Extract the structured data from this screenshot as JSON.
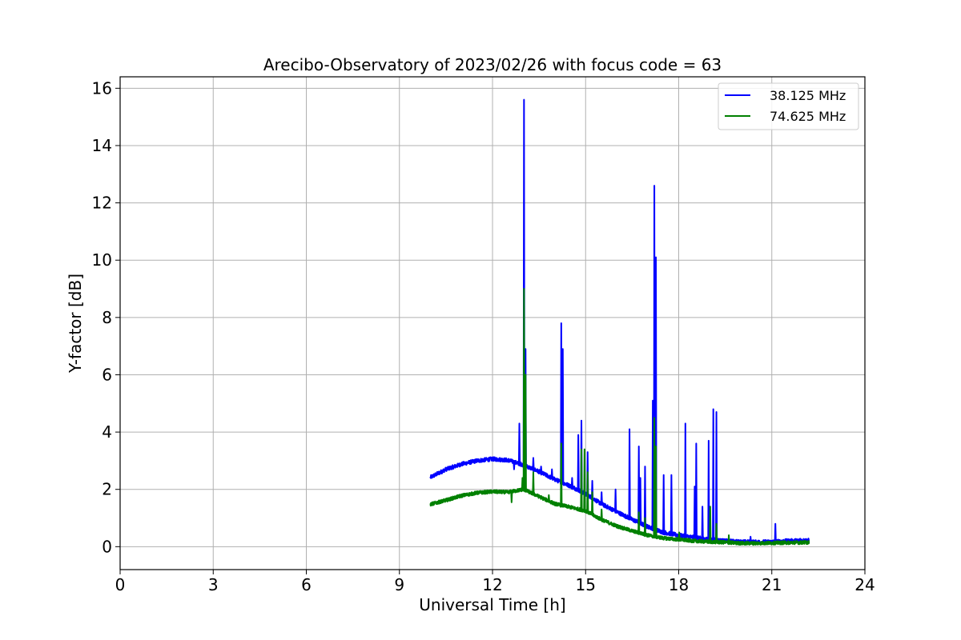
{
  "chart_data": {
    "type": "line",
    "title": "Arecibo-Observatory of 2023/02/26 with focus code = 63",
    "xlabel": "Universal Time [h]",
    "ylabel": "Y-factor [dB]",
    "xlim": [
      0,
      24
    ],
    "ylim": [
      -0.8,
      16.4
    ],
    "xticks": [
      0,
      3,
      6,
      9,
      12,
      15,
      18,
      21,
      24
    ],
    "xtick_labels": [
      "0",
      "3",
      "6",
      "9",
      "12",
      "15",
      "18",
      "21",
      "24"
    ],
    "yticks": [
      0,
      2,
      4,
      6,
      8,
      10,
      12,
      14,
      16
    ],
    "ytick_labels": [
      "0",
      "2",
      "4",
      "6",
      "8",
      "10",
      "12",
      "14",
      "16"
    ],
    "grid": true,
    "legend_position": "upper-right",
    "series": [
      {
        "name": "38.125 MHz",
        "color": "#0000ff",
        "baseline": [
          [
            10.0,
            2.42
          ],
          [
            10.5,
            2.7
          ],
          [
            11.0,
            2.88
          ],
          [
            11.5,
            3.0
          ],
          [
            12.0,
            3.06
          ],
          [
            12.5,
            3.02
          ],
          [
            13.0,
            2.85
          ],
          [
            13.5,
            2.62
          ],
          [
            14.0,
            2.35
          ],
          [
            14.5,
            2.12
          ],
          [
            15.0,
            1.85
          ],
          [
            15.5,
            1.5
          ],
          [
            16.0,
            1.22
          ],
          [
            16.5,
            0.95
          ],
          [
            17.0,
            0.7
          ],
          [
            17.5,
            0.5
          ],
          [
            18.0,
            0.4
          ],
          [
            18.5,
            0.32
          ],
          [
            19.0,
            0.25
          ],
          [
            19.5,
            0.2
          ],
          [
            20.0,
            0.17
          ],
          [
            20.5,
            0.16
          ],
          [
            21.0,
            0.17
          ],
          [
            21.5,
            0.2
          ],
          [
            22.2,
            0.22
          ]
        ],
        "noise": 0.07,
        "spikes": [
          [
            12.68,
            2.7
          ],
          [
            12.85,
            4.3
          ],
          [
            13.0,
            15.6
          ],
          [
            13.05,
            6.9
          ],
          [
            13.3,
            3.1
          ],
          [
            13.55,
            2.8
          ],
          [
            13.9,
            2.7
          ],
          [
            14.2,
            7.8
          ],
          [
            14.25,
            6.9
          ],
          [
            14.55,
            2.4
          ],
          [
            14.75,
            3.9
          ],
          [
            14.85,
            4.4
          ],
          [
            15.05,
            3.3
          ],
          [
            15.2,
            2.3
          ],
          [
            15.5,
            1.9
          ],
          [
            15.95,
            2.0
          ],
          [
            16.4,
            4.1
          ],
          [
            16.7,
            3.5
          ],
          [
            16.75,
            2.4
          ],
          [
            16.9,
            2.8
          ],
          [
            17.15,
            5.1
          ],
          [
            17.2,
            12.6
          ],
          [
            17.25,
            10.1
          ],
          [
            17.5,
            2.5
          ],
          [
            17.75,
            2.5
          ],
          [
            18.2,
            4.3
          ],
          [
            18.55,
            3.6
          ],
          [
            18.5,
            2.1
          ],
          [
            18.75,
            1.4
          ],
          [
            18.95,
            3.7
          ],
          [
            19.1,
            4.8
          ],
          [
            19.2,
            4.7
          ],
          [
            20.3,
            0.35
          ],
          [
            21.1,
            0.8
          ],
          [
            21.9,
            0.28
          ]
        ]
      },
      {
        "name": "74.625 MHz",
        "color": "#008000",
        "baseline": [
          [
            10.0,
            1.48
          ],
          [
            10.5,
            1.62
          ],
          [
            11.0,
            1.78
          ],
          [
            11.5,
            1.88
          ],
          [
            12.0,
            1.92
          ],
          [
            12.5,
            1.9
          ],
          [
            13.0,
            2.0
          ],
          [
            13.5,
            1.75
          ],
          [
            14.0,
            1.5
          ],
          [
            14.5,
            1.38
          ],
          [
            15.0,
            1.25
          ],
          [
            15.5,
            0.95
          ],
          [
            16.0,
            0.72
          ],
          [
            16.5,
            0.55
          ],
          [
            17.0,
            0.4
          ],
          [
            17.5,
            0.3
          ],
          [
            18.0,
            0.25
          ],
          [
            18.5,
            0.2
          ],
          [
            19.0,
            0.17
          ],
          [
            19.5,
            0.15
          ],
          [
            20.0,
            0.12
          ],
          [
            20.5,
            0.12
          ],
          [
            21.0,
            0.13
          ],
          [
            21.5,
            0.14
          ],
          [
            22.2,
            0.15
          ]
        ],
        "noise": 0.06,
        "spikes": [
          [
            12.6,
            1.55
          ],
          [
            12.95,
            2.4
          ],
          [
            13.0,
            9.0
          ],
          [
            13.05,
            6.0
          ],
          [
            13.3,
            2.6
          ],
          [
            13.8,
            1.8
          ],
          [
            14.2,
            3.6
          ],
          [
            14.85,
            3.4
          ],
          [
            14.95,
            3.4
          ],
          [
            15.05,
            2.6
          ],
          [
            15.2,
            1.9
          ],
          [
            15.5,
            1.3
          ],
          [
            16.7,
            1.2
          ],
          [
            16.9,
            1.0
          ],
          [
            17.2,
            4.5
          ],
          [
            17.25,
            3.5
          ],
          [
            18.0,
            0.5
          ],
          [
            19.0,
            1.4
          ],
          [
            19.2,
            0.8
          ],
          [
            19.6,
            0.4
          ]
        ]
      }
    ]
  }
}
